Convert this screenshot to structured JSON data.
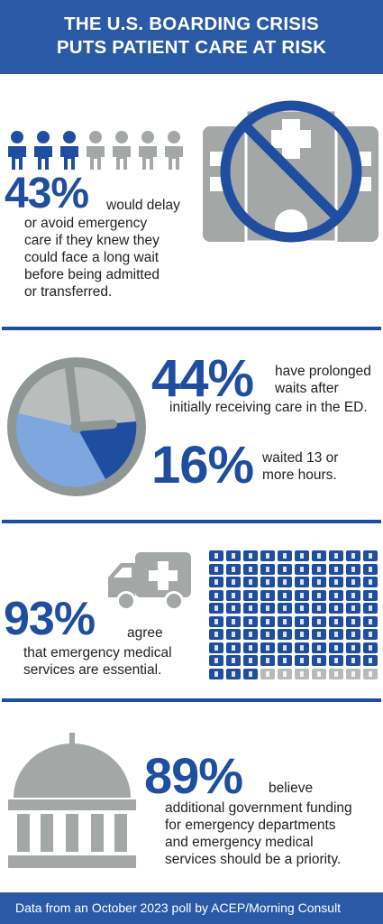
{
  "header": {
    "line1": "THE U.S. BOARDING CRISIS",
    "line2": "PUTS PATIENT CARE AT RISK"
  },
  "section1": {
    "percent": "43%",
    "text_inline": "would delay",
    "text_lines": [
      "or avoid emergency",
      "care if they knew they",
      "could face a long wait",
      "before being admitted",
      "or transferred."
    ],
    "people_filled": 3,
    "people_total": 7,
    "icon": "no-hospital-icon"
  },
  "section2": {
    "stat1_percent": "44%",
    "stat1_text_lines": [
      "have prolonged",
      "waits after"
    ],
    "stat1_text_full": "initially receiving care in the ED.",
    "stat2_percent": "16%",
    "stat2_text_lines": [
      "waited 13 or",
      "more hours."
    ],
    "icon": "clock-icon"
  },
  "section3": {
    "percent": "93%",
    "text_inline": "agree",
    "text_lines": [
      "that emergency medical",
      "services are essential."
    ],
    "icon": "ambulance-icon",
    "grid_filled": 93,
    "grid_total": 100
  },
  "section4": {
    "percent": "89%",
    "text_inline": "believe",
    "text_lines": [
      "additional government funding",
      "for emergency departments",
      "and emergency medical",
      "services should be a priority."
    ],
    "icon": "capitol-building-icon"
  },
  "footer": {
    "text": "Data from an October 2023 poll by ACEP/Morning Consult"
  },
  "colors": {
    "brand_blue": "#1f4ea1",
    "header_blue": "#2a5aa6",
    "gray": "#a3a8a6",
    "light_blue": "#7fa7df"
  }
}
